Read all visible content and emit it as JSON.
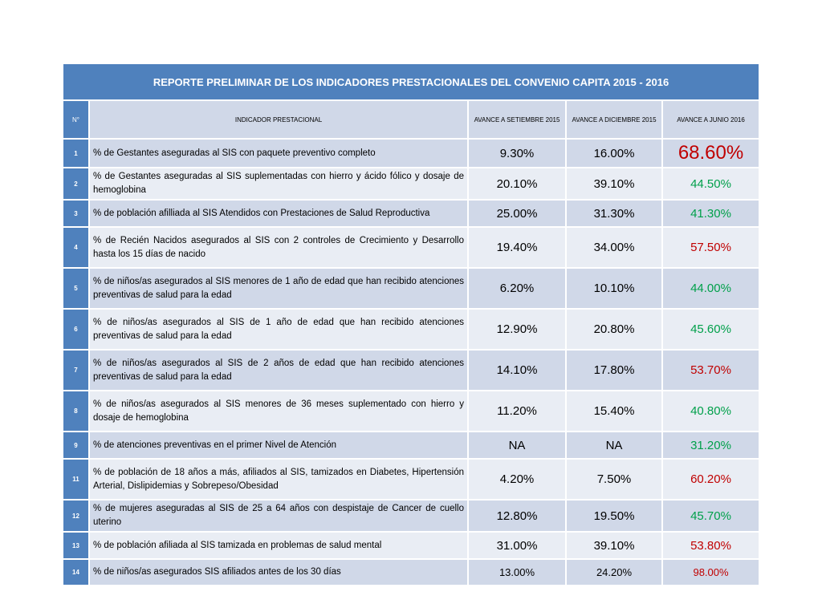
{
  "report": {
    "title": "REPORTE PRELIMINAR DE LOS INDICADORES PRESTACIONALES DEL CONVENIO CAPITA 2015 - 2016",
    "headers": {
      "num": "N°",
      "indicator": "INDICADOR PRESTACIONAL",
      "sep2015": "AVANCE A SETIEMBRE 2015",
      "dic2015": "AVANCE A DICIEMBRE 2015",
      "jun2016": "AVANCE A JUNIO 2016"
    },
    "colors": {
      "header_blue": "#4f81bd",
      "row_dark": "#d0d8e8",
      "row_light": "#e9edf4",
      "red": "#c00000",
      "green": "#00a04a"
    },
    "rows": [
      {
        "n": "1",
        "indicator": "% de Gestantes aseguradas al SIS con paquete preventivo completo",
        "sep": "9.30%",
        "dic": "16.00%",
        "jun": "68.60%",
        "jun_color": "red"
      },
      {
        "n": "2",
        "indicator": "% de Gestantes aseguradas al SIS suplementadas con hierro y ácido fólico y dosaje de hemoglobina",
        "sep": "20.10%",
        "dic": "39.10%",
        "jun": "44.50%",
        "jun_color": "green"
      },
      {
        "n": "3",
        "indicator": "% de población afilliada al SIS Atendidos con Prestaciones de Salud Reproductiva",
        "sep": "25.00%",
        "dic": "31.30%",
        "jun": "41.30%",
        "jun_color": "green"
      },
      {
        "n": "4",
        "indicator": "% de Recién Nacidos asegurados al SIS con 2 controles de Crecimiento y Desarrollo hasta los 15 días de nacido",
        "sep": "19.40%",
        "dic": "34.00%",
        "jun": "57.50%",
        "jun_color": "red"
      },
      {
        "n": "5",
        "indicator": "% de niños/as asegurados al SIS menores de 1 año de edad que han recibido atenciones preventivas de salud para la edad",
        "sep": "6.20%",
        "dic": "10.10%",
        "jun": "44.00%",
        "jun_color": "green"
      },
      {
        "n": "6",
        "indicator": "% de niños/as asegurados al SIS de 1 año de edad que han recibido atenciones preventivas de salud para la edad",
        "sep": "12.90%",
        "dic": "20.80%",
        "jun": "45.60%",
        "jun_color": "green"
      },
      {
        "n": "7",
        "indicator": "% de niños/as asegurados al SIS de 2 años de edad que han recibido atenciones preventivas de salud para la edad",
        "sep": "14.10%",
        "dic": "17.80%",
        "jun": "53.70%",
        "jun_color": "red"
      },
      {
        "n": "8",
        "indicator": "% de niños/as asegurados al SIS menores de 36 meses suplementado con hierro y dosaje de hemoglobina",
        "sep": "11.20%",
        "dic": "15.40%",
        "jun": "40.80%",
        "jun_color": "green"
      },
      {
        "n": "9",
        "indicator": "% de atenciones preventivas en el primer Nivel de Atención",
        "sep": "NA",
        "dic": "NA",
        "jun": "31.20%",
        "jun_color": "green"
      },
      {
        "n": "11",
        "indicator": "% de población de 18 años a más, afiliados al SIS, tamizados en Diabetes, Hipertensión Arterial, Dislipidemias y Sobrepeso/Obesidad",
        "sep": "4.20%",
        "dic": "7.50%",
        "jun": "60.20%",
        "jun_color": "red"
      },
      {
        "n": "12",
        "indicator": "% de mujeres aseguradas al SIS de 25 a 64 años con despistaje de Cancer de cuello uterino",
        "sep": "12.80%",
        "dic": "19.50%",
        "jun": "45.70%",
        "jun_color": "green"
      },
      {
        "n": "13",
        "indicator": "% de población afiliada al SIS tamizada en problemas de salud mental",
        "sep": "31.00%",
        "dic": "39.10%",
        "jun": "53.80%",
        "jun_color": "red"
      },
      {
        "n": "14",
        "indicator": "% de niños/as asegurados SIS afiliados antes de los 30 días",
        "sep": "13.00%",
        "dic": "24.20%",
        "jun": "98.00%",
        "jun_color": "red"
      }
    ]
  }
}
